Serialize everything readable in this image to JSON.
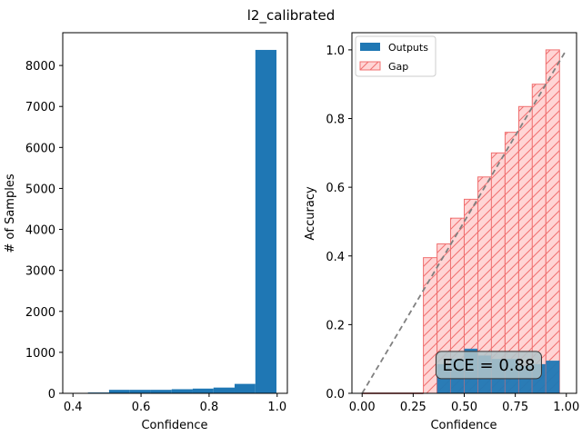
{
  "figure": {
    "suptitle": "l2_calibrated"
  },
  "chart_data": [
    {
      "type": "bar",
      "subtype": "histogram",
      "title": "",
      "xlabel": "Confidence",
      "ylabel": "# of Samples",
      "xlim": [
        0.37,
        1.03
      ],
      "ylim": [
        0,
        8800
      ],
      "xticks": [
        0.4,
        0.6,
        0.8,
        1.0
      ],
      "xtick_labels": [
        "0.4",
        "0.6",
        "0.8",
        "1.0"
      ],
      "yticks": [
        0,
        1000,
        2000,
        3000,
        4000,
        5000,
        6000,
        7000,
        8000
      ],
      "ytick_labels": [
        "0",
        "1000",
        "2000",
        "3000",
        "4000",
        "5000",
        "6000",
        "7000",
        "8000"
      ],
      "bin_edges": [
        0.383,
        0.444,
        0.506,
        0.567,
        0.629,
        0.69,
        0.752,
        0.813,
        0.875,
        0.936,
        0.998
      ],
      "values": [
        10,
        20,
        85,
        85,
        85,
        100,
        115,
        140,
        230,
        8380
      ],
      "color": "#1f77b4",
      "grid": false
    },
    {
      "type": "bar",
      "subtype": "reliability-diagram",
      "title": "",
      "xlabel": "Confidence",
      "ylabel": "Accuracy",
      "xlim": [
        -0.05,
        1.05
      ],
      "ylim": [
        0,
        1.05
      ],
      "xticks": [
        0.0,
        0.25,
        0.5,
        0.75,
        1.0
      ],
      "xtick_labels": [
        "0.00",
        "0.25",
        "0.50",
        "0.75",
        "1.00"
      ],
      "yticks": [
        0.0,
        0.2,
        0.4,
        0.6,
        0.8,
        1.0
      ],
      "ytick_labels": [
        "0.0",
        "0.2",
        "0.4",
        "0.6",
        "0.8",
        "1.0"
      ],
      "bin_width": 0.0667,
      "bin_left_edges": [
        0.3,
        0.367,
        0.433,
        0.5,
        0.567,
        0.633,
        0.7,
        0.767,
        0.833,
        0.9
      ],
      "series": [
        {
          "name": "Outputs",
          "values": [
            0.0,
            0.085,
            0.1,
            0.13,
            0.11,
            0.1,
            0.1,
            0.08,
            0.085,
            0.095
          ],
          "color": "#1f77b4"
        },
        {
          "name": "Gap",
          "values": [
            0.395,
            0.435,
            0.51,
            0.565,
            0.63,
            0.7,
            0.76,
            0.835,
            0.9,
            1.0
          ],
          "color": "#ff0000"
        }
      ],
      "baseline_segment": {
        "x": [
          0.0,
          0.3
        ],
        "y": 0.0,
        "color": "#8b0000"
      },
      "diagonal": {
        "x": [
          0.0,
          1.0
        ],
        "y": [
          0.0,
          1.0
        ],
        "style": "dashed",
        "color": "#808080"
      },
      "legend": {
        "placement": "top-left",
        "entries": [
          "Outputs",
          "Gap"
        ]
      },
      "annotation": {
        "text": "ECE = 0.88",
        "x": 0.62,
        "y": 0.085
      },
      "grid": false
    }
  ]
}
